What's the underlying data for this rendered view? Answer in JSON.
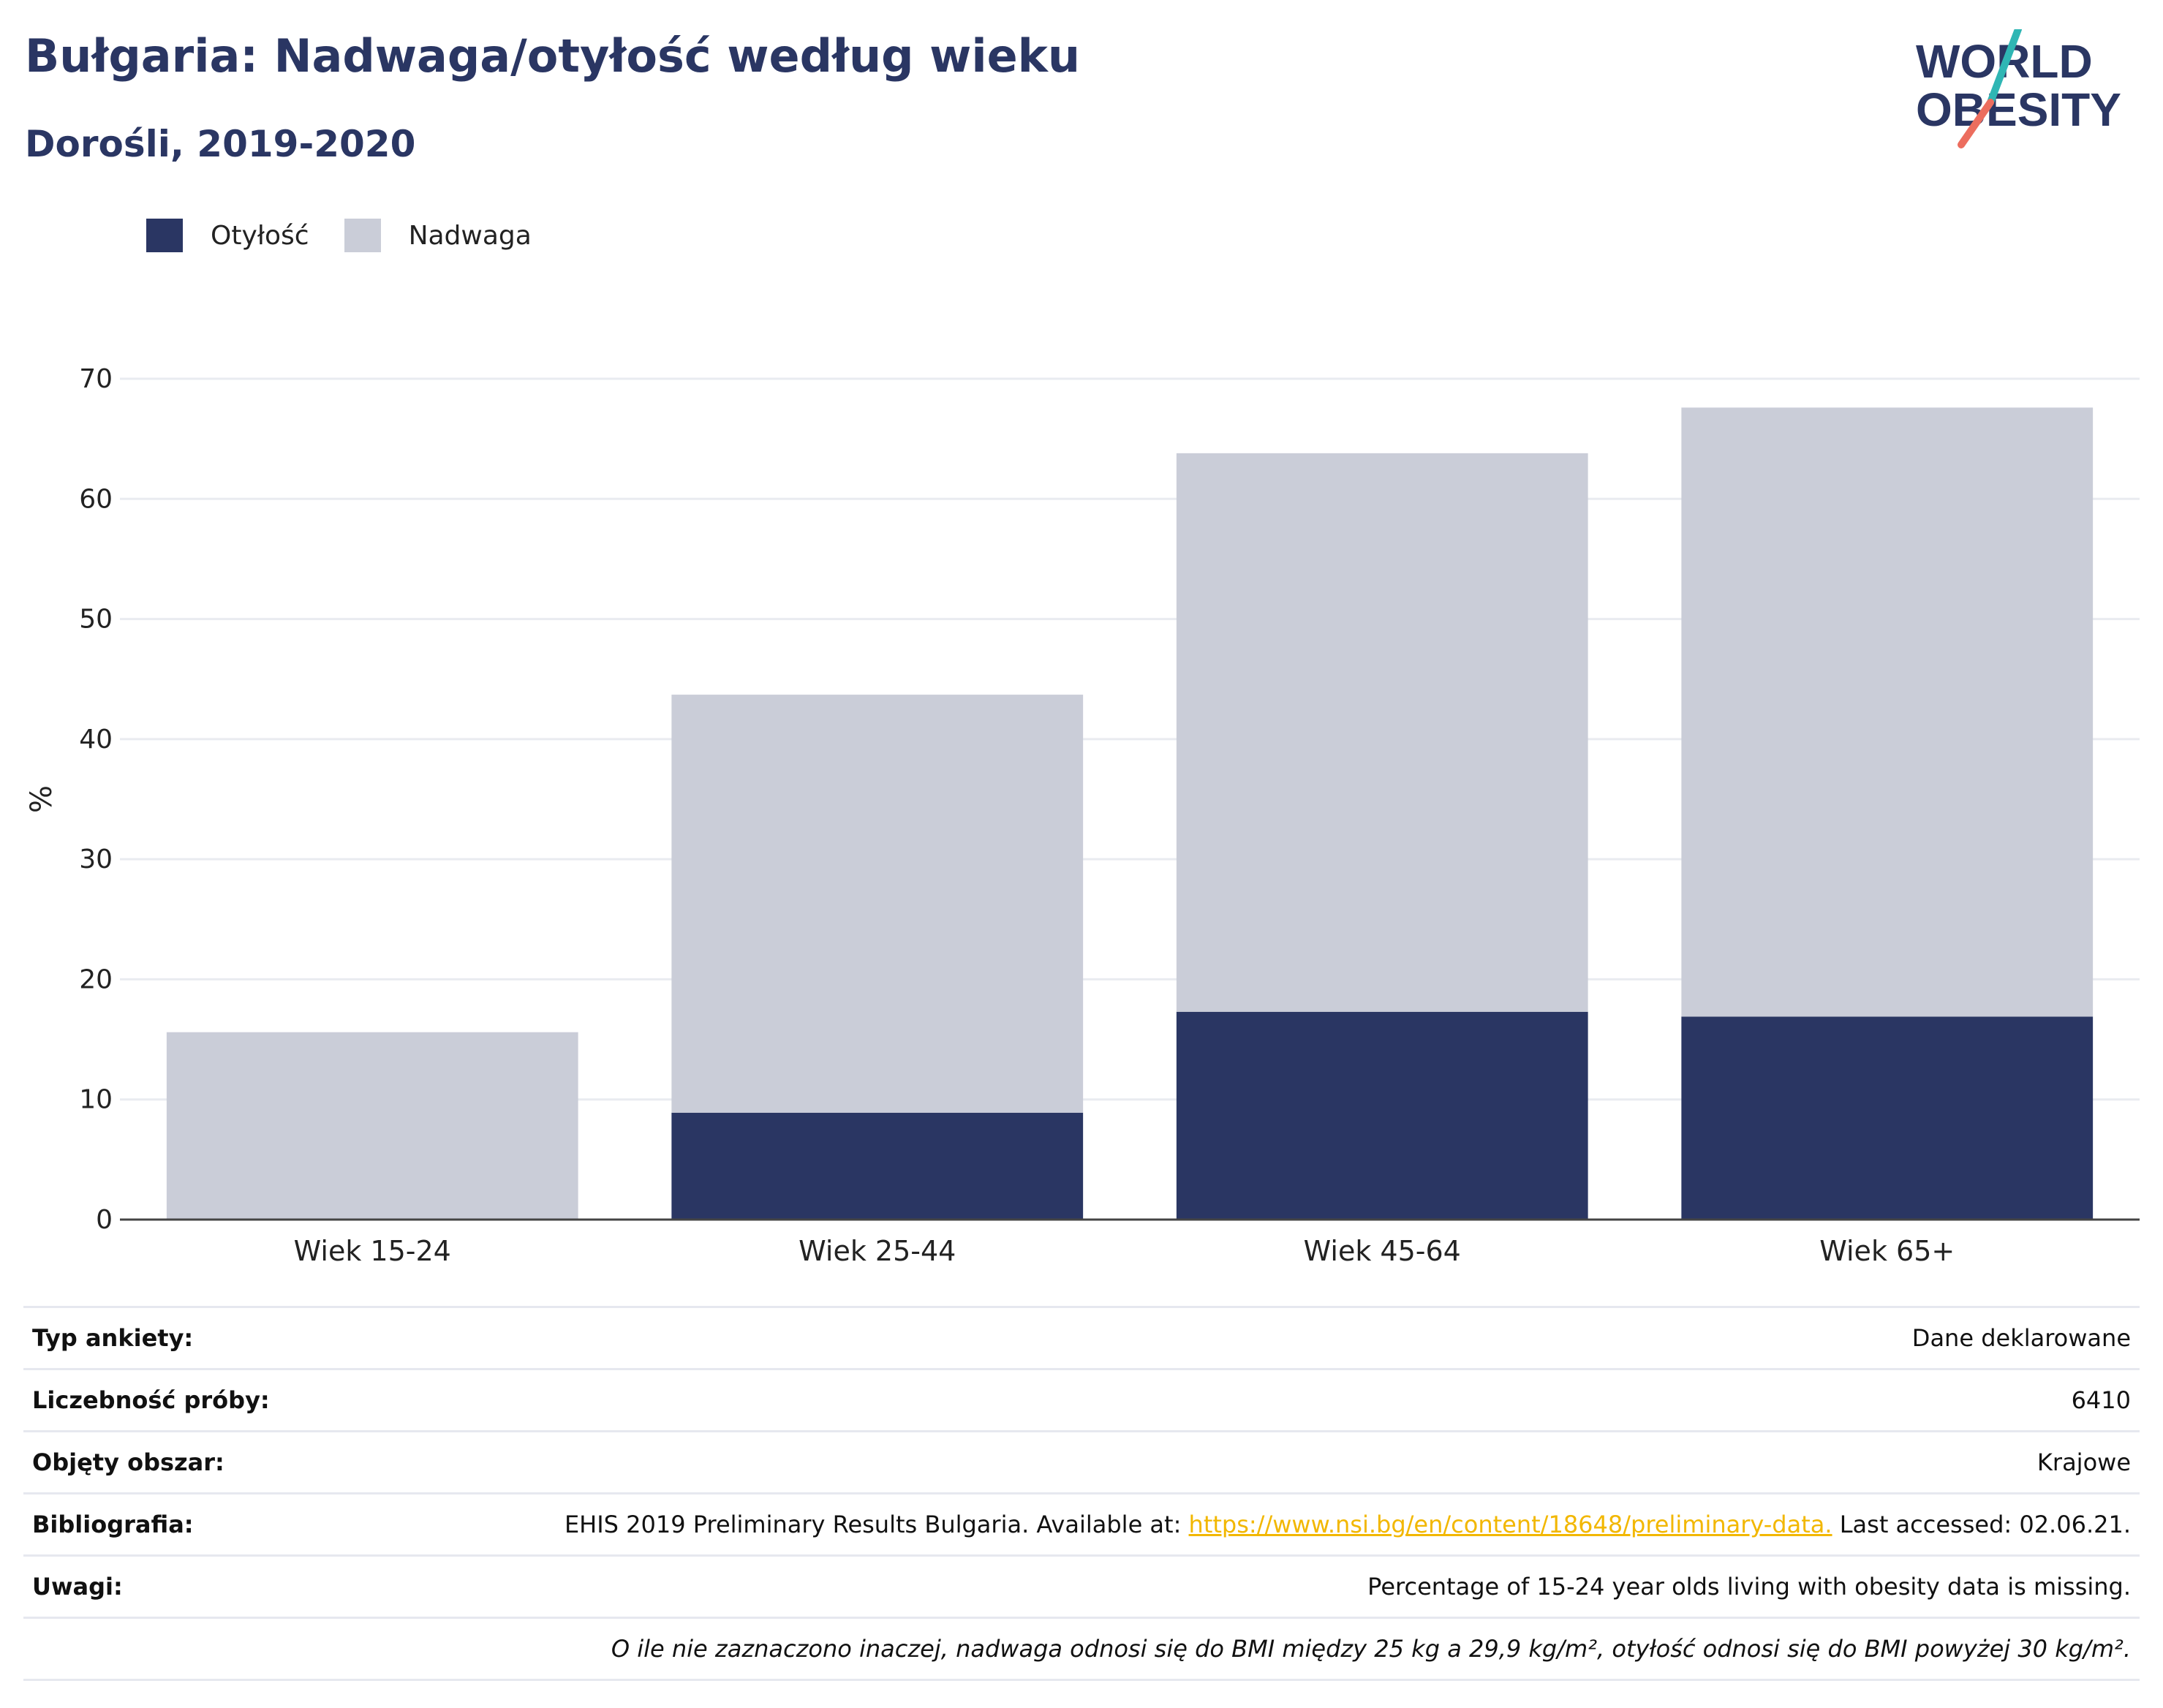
{
  "header": {
    "title": "Bułgaria: Nadwaga/otyłość według wieku",
    "subtitle": "Dorośli, 2019-2020"
  },
  "logo": {
    "line1": "WORLD",
    "line2": "OBESITY",
    "icon": "world-obesity-logo"
  },
  "colors": {
    "obesity": "#2a3663",
    "overweight": "#cacdd8",
    "accent_teal": "#2fb6b4",
    "accent_red": "#ec6d5e",
    "link": "#f2b700"
  },
  "legend": [
    {
      "label": "Otyłość",
      "color": "#2a3663"
    },
    {
      "label": "Nadwaga",
      "color": "#cacdd8"
    }
  ],
  "chart_data": {
    "type": "bar",
    "stacked": true,
    "categories": [
      "Wiek 15-24",
      "Wiek 25-44",
      "Wiek 45-64",
      "Wiek 65+"
    ],
    "series": [
      {
        "name": "Otyłość",
        "values": [
          null,
          8.9,
          17.3,
          16.9
        ]
      },
      {
        "name": "Nadwaga",
        "values": [
          15.6,
          34.8,
          46.5,
          50.7
        ]
      }
    ],
    "ylabel": "%",
    "ylim": [
      0,
      70
    ],
    "yticks": [
      0,
      10,
      20,
      30,
      40,
      50,
      60,
      70
    ],
    "grid": true,
    "legend_position": "top-left"
  },
  "info": {
    "survey_type": {
      "label": "Typ ankiety:",
      "value": "Dane deklarowane"
    },
    "sample_size": {
      "label": "Liczebność próby:",
      "value": "6410"
    },
    "area": {
      "label": "Objęty obszar:",
      "value": "Krajowe"
    },
    "bibliography": {
      "label": "Bibliografia:",
      "prefix": "EHIS 2019 Preliminary Results Bulgaria. Available at: ",
      "link": "https://www.nsi.bg/en/content/18648/preliminary-data.",
      "suffix": " Last accessed: 02.06.21."
    },
    "notes": {
      "label": "Uwagi:",
      "value": "Percentage of 15-24 year olds living with obesity data is missing."
    },
    "footnote": "O ile nie zaznaczono inaczej, nadwaga odnosi się do BMI między 25 kg a 29,9 kg/m², otyłość odnosi się do BMI powyżej 30 kg/m²."
  }
}
